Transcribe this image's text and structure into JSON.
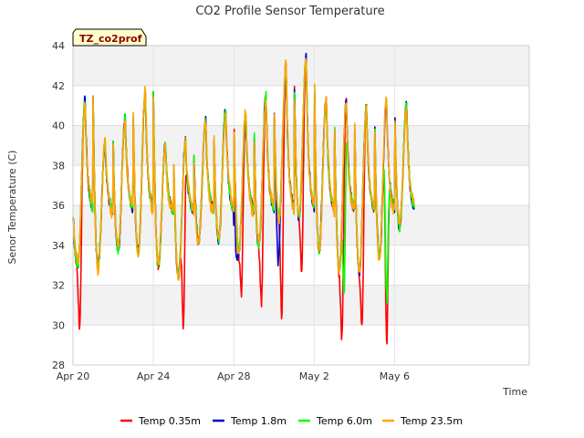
{
  "chart_data": {
    "type": "line",
    "title": "CO2 Profile Sensor Temperature",
    "xlabel": "Time",
    "ylabel": "Senor Temperature (C)",
    "site_badge": "TZ_co2prof",
    "ylim": [
      28,
      44
    ],
    "xlim_days": [
      0,
      22.7
    ],
    "grid": true,
    "legend_position": "bottom",
    "x_ticks": [
      {
        "label": "Apr 20",
        "day": 0
      },
      {
        "label": "Apr 24",
        "day": 4
      },
      {
        "label": "Apr 28",
        "day": 8
      },
      {
        "label": "May 2",
        "day": 12
      },
      {
        "label": "May 6",
        "day": 16
      }
    ],
    "y_ticks": [
      28,
      30,
      32,
      34,
      36,
      38,
      40,
      42,
      44
    ],
    "daily": {
      "peaks": [
        41.3,
        39.0,
        40.4,
        41.6,
        39.0,
        39.2,
        40.2,
        40.8,
        40.5,
        41.5,
        43.0,
        43.4,
        41.4,
        41.2,
        41.0,
        41.3,
        41.1
      ],
      "troughs": [
        33.0,
        33.0,
        33.8,
        33.7,
        33.0,
        32.5,
        34.2,
        34.3,
        33.8,
        34.0,
        35.5,
        35.4,
        33.8,
        32.8,
        32.7,
        33.5,
        34.9
      ]
    },
    "series": [
      {
        "name": "Temp 0.35m",
        "color": "#ff0000",
        "dips": [
          {
            "day": 0.35,
            "min": 30.2
          },
          {
            "day": 5.5,
            "min": 29.9
          },
          {
            "day": 8.4,
            "min": 32.0
          },
          {
            "day": 9.4,
            "min": 31.5
          },
          {
            "day": 10.4,
            "min": 30.8
          },
          {
            "day": 11.4,
            "min": 33.1
          },
          {
            "day": 13.4,
            "min": 29.7
          },
          {
            "day": 14.4,
            "min": 30.3
          },
          {
            "day": 15.6,
            "min": 29.5
          }
        ]
      },
      {
        "name": "Temp 1.8m",
        "color": "#0000cc",
        "dips": [
          {
            "day": 8.1,
            "min": 34.0
          },
          {
            "day": 10.2,
            "min": 33.1
          }
        ]
      },
      {
        "name": "Temp 6.0m",
        "color": "#00ff00",
        "dips": [
          {
            "day": 13.5,
            "min": 32.0
          },
          {
            "day": 15.6,
            "min": 31.6
          }
        ]
      },
      {
        "name": "Temp 23.5m",
        "color": "#ffa500",
        "dips": []
      }
    ]
  }
}
